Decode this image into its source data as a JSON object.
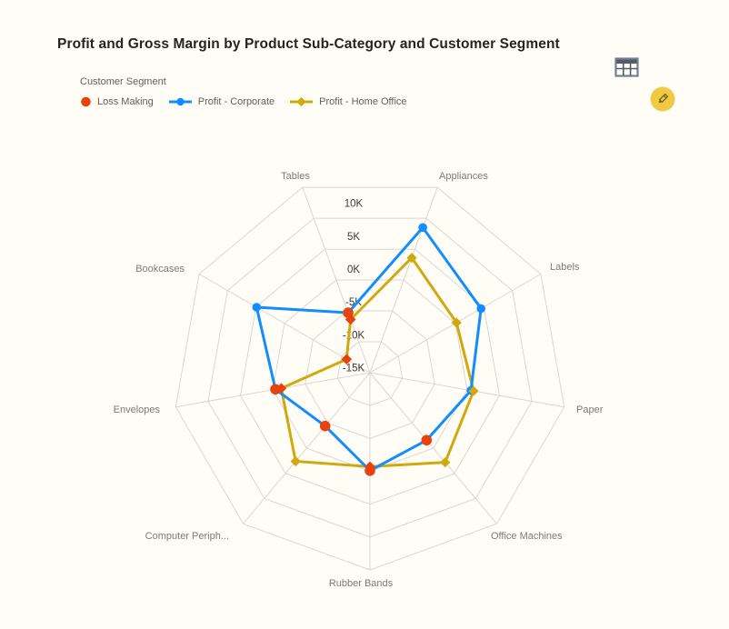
{
  "header": {
    "title": "Profit and Gross Margin by Product Sub-Category and Customer Segment"
  },
  "toolbar": {
    "table_icon_name": "table-grid-icon",
    "edit_icon_name": "pencil-icon",
    "edit_button_color": "#EFC93F"
  },
  "legend": {
    "title": "Customer Segment",
    "items": [
      {
        "label": "Loss Making",
        "color": "#E8430F",
        "marker": "circle"
      },
      {
        "label": "Profit - Corporate",
        "color": "#118DFF",
        "marker": "line-circle"
      },
      {
        "label": "Profit - Home Office",
        "color": "#D0A90E",
        "marker": "line-diamond"
      }
    ]
  },
  "chart_data": {
    "type": "radar",
    "title": "Profit and Gross Margin by Product Sub-Category and Customer Segment",
    "units": "K",
    "categories": [
      "Tables",
      "Appliances",
      "Labels",
      "Paper",
      "Office Machines",
      "Rubber Bands",
      "Computer Periph...",
      "Envelopes",
      "Bookcases"
    ],
    "series": [
      {
        "name": "Profit - Corporate",
        "color": "#118DFF",
        "marker": "circle",
        "values": [
          -5.3,
          8.5,
          4.5,
          0.6,
          -1.6,
          -0.1,
          -4.4,
          -0.4,
          4.9
        ]
      },
      {
        "name": "Profit - Home Office",
        "color": "#D0A90E",
        "marker": "diamond",
        "values": [
          -6.4,
          3.6,
          0.2,
          1.0,
          2.8,
          -0.7,
          2.6,
          -1.3,
          -10.9
        ]
      }
    ],
    "loss_series": {
      "name": "Loss Making",
      "color": "#E8430F",
      "points": [
        {
          "category": "Tables",
          "segment": "Corporate",
          "value": -5.3,
          "marker": "circle"
        },
        {
          "category": "Office Machines",
          "segment": "Corporate",
          "value": -1.6,
          "marker": "circle"
        },
        {
          "category": "Rubber Bands",
          "segment": "Corporate",
          "value": -0.1,
          "marker": "circle"
        },
        {
          "category": "Computer Periph...",
          "segment": "Corporate",
          "value": -4.4,
          "marker": "circle"
        },
        {
          "category": "Envelopes",
          "segment": "Corporate",
          "value": -0.4,
          "marker": "circle"
        },
        {
          "category": "Tables",
          "segment": "Home Office",
          "value": -6.4,
          "marker": "diamond"
        },
        {
          "category": "Rubber Bands",
          "segment": "Home Office",
          "value": -0.7,
          "marker": "diamond"
        },
        {
          "category": "Envelopes",
          "segment": "Home Office",
          "value": -1.3,
          "marker": "diamond"
        },
        {
          "category": "Bookcases",
          "segment": "Home Office",
          "value": -10.9,
          "marker": "diamond"
        }
      ]
    },
    "axis": {
      "tick_labels": [
        "10K",
        "5K",
        "0K",
        "-5K",
        "-10K",
        "-15K"
      ],
      "tick_values": [
        10,
        5,
        0,
        -5,
        -10,
        -15
      ],
      "min": -15,
      "max": 15,
      "rings": 6,
      "grid": true,
      "legend_position": "top-left"
    },
    "colors": {
      "grid": "#D9D7D3",
      "tick_text": "#3A3A3A",
      "category_text": "#7D7A77",
      "background": "#FFFDF6"
    }
  }
}
